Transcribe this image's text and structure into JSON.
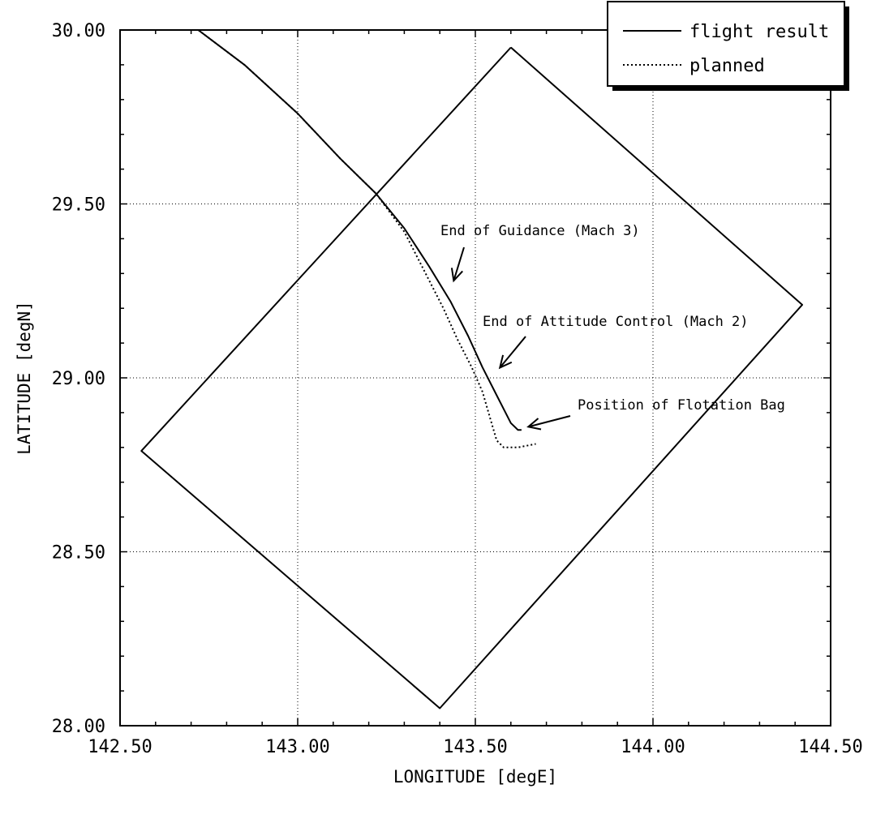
{
  "chart_data": {
    "type": "line",
    "xlabel": "LONGITUDE  [degE]",
    "ylabel": "LATITUDE  [degN]",
    "xlim": [
      142.5,
      144.5
    ],
    "ylim": [
      28.0,
      30.0
    ],
    "x_ticks": [
      "142.50",
      "143.00",
      "143.50",
      "144.00",
      "144.50"
    ],
    "y_ticks": [
      "28.00",
      "28.50",
      "29.00",
      "29.50",
      "30.00"
    ],
    "grid": true,
    "legend_position": "top-right",
    "series": [
      {
        "name": "flight result",
        "style": "solid",
        "points": [
          [
            142.72,
            30.0
          ],
          [
            142.85,
            29.9
          ],
          [
            143.0,
            29.76
          ],
          [
            143.12,
            29.63
          ],
          [
            143.22,
            29.53
          ],
          [
            143.3,
            29.43
          ],
          [
            143.37,
            29.32
          ],
          [
            143.43,
            29.22
          ],
          [
            143.48,
            29.12
          ],
          [
            143.52,
            29.03
          ],
          [
            143.56,
            28.95
          ],
          [
            143.6,
            28.87
          ],
          [
            143.62,
            28.85
          ],
          [
            143.63,
            28.85
          ]
        ]
      },
      {
        "name": "planned",
        "style": "dotted",
        "points": [
          [
            142.72,
            30.0
          ],
          [
            142.85,
            29.9
          ],
          [
            143.0,
            29.76
          ],
          [
            143.12,
            29.63
          ],
          [
            143.22,
            29.53
          ],
          [
            143.3,
            29.42
          ],
          [
            143.36,
            29.3
          ],
          [
            143.41,
            29.2
          ],
          [
            143.45,
            29.11
          ],
          [
            143.49,
            29.03
          ],
          [
            143.52,
            28.96
          ],
          [
            143.54,
            28.89
          ],
          [
            143.56,
            28.82
          ],
          [
            143.58,
            28.8
          ],
          [
            143.62,
            28.8
          ],
          [
            143.67,
            28.81
          ]
        ]
      },
      {
        "name": "",
        "style": "solid",
        "points": [
          [
            143.6,
            29.95
          ],
          [
            144.42,
            29.21
          ],
          [
            143.4,
            28.05
          ],
          [
            142.56,
            28.79
          ],
          [
            143.6,
            29.95
          ]
        ]
      }
    ],
    "annotations": [
      {
        "text": "End of Guidance (Mach 3)",
        "x": 143.43,
        "y": 29.27
      },
      {
        "text": "End of Attitude Control (Mach 2)",
        "x": 143.56,
        "y": 29.02
      },
      {
        "text": "Position of Flotation Bag",
        "x": 143.64,
        "y": 28.85
      }
    ]
  }
}
